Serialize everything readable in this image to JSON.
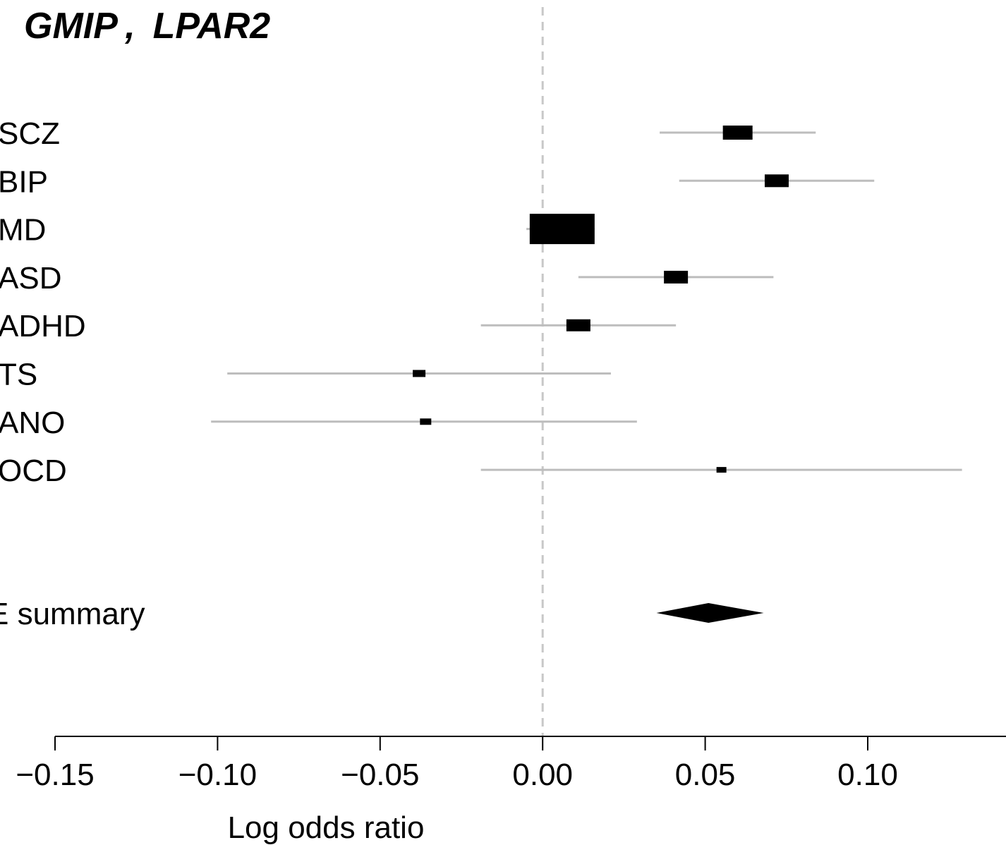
{
  "chart_data": {
    "type": "forest",
    "title": "GMIP ,  LPAR2",
    "xlabel": "Log odds ratio",
    "xlim": [
      -0.15,
      0.15
    ],
    "ticks": [
      -0.15,
      -0.1,
      -0.05,
      0.0,
      0.05,
      0.1
    ],
    "tick_labels": [
      "−0.15",
      "−0.10",
      "−0.05",
      "0.00",
      "0.05",
      "0.10"
    ],
    "reference_line": 0.0,
    "rows": [
      {
        "label": "SCZ",
        "estimate": 0.06,
        "ci": [
          0.036,
          0.084
        ]
      },
      {
        "label": "BIP",
        "estimate": 0.072,
        "ci": [
          0.042,
          0.102
        ]
      },
      {
        "label": "MD",
        "estimate": 0.006,
        "ci": [
          -0.005,
          0.016
        ]
      },
      {
        "label": "ASD",
        "estimate": 0.041,
        "ci": [
          0.011,
          0.071
        ]
      },
      {
        "label": "ADHD",
        "estimate": 0.011,
        "ci": [
          -0.019,
          0.041
        ]
      },
      {
        "label": "TS",
        "estimate": -0.038,
        "ci": [
          -0.097,
          0.021
        ]
      },
      {
        "label": "ANO",
        "estimate": -0.036,
        "ci": [
          -0.102,
          0.029
        ]
      },
      {
        "label": "OCD",
        "estimate": 0.055,
        "ci": [
          -0.019,
          0.129
        ]
      }
    ],
    "summary": {
      "label": "E summary",
      "estimate": 0.051,
      "ci": [
        0.035,
        0.068
      ]
    },
    "colors": {
      "ci_line": "#bdbdbd",
      "box": "#000000",
      "reference_line": "#c8c8c8",
      "axis": "#000000"
    }
  }
}
